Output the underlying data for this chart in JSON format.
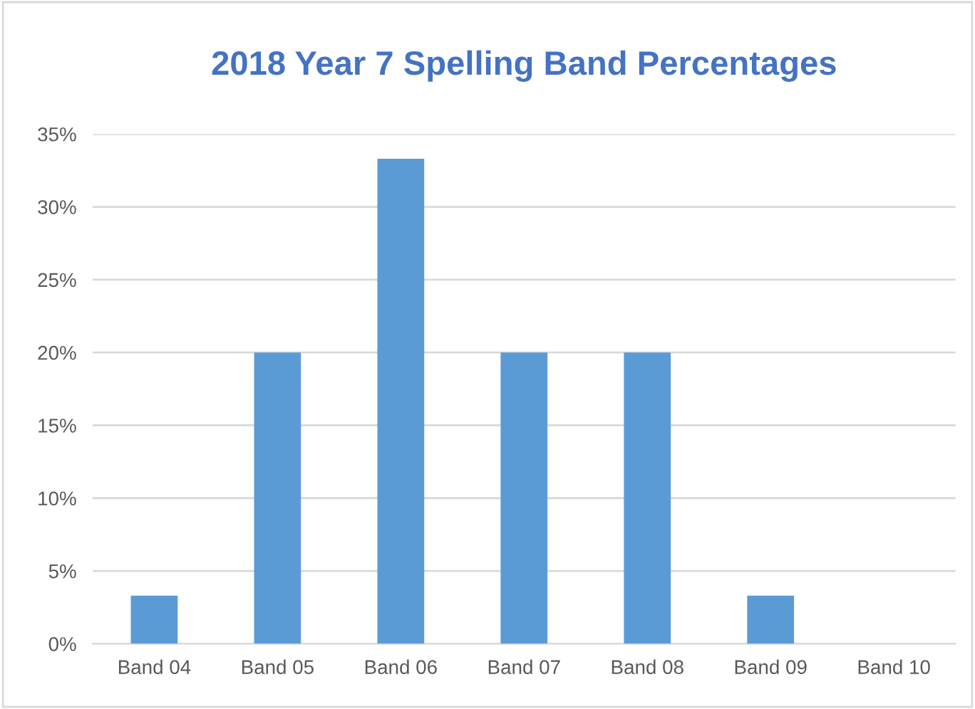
{
  "chart_data": {
    "type": "bar",
    "title": "2018 Year 7 Spelling Band Percentages",
    "categories": [
      "Band 04",
      "Band 05",
      "Band 06",
      "Band 07",
      "Band 08",
      "Band 09",
      "Band 10"
    ],
    "values": [
      3.3,
      20,
      33.3,
      20,
      20,
      3.3,
      0
    ],
    "color": "#5b9bd5",
    "ylim": [
      0,
      35
    ],
    "yticks": [
      {
        "value": 0,
        "label": "0%"
      },
      {
        "value": 5,
        "label": "5%"
      },
      {
        "value": 10,
        "label": "10%"
      },
      {
        "value": 15,
        "label": "15%"
      },
      {
        "value": 20,
        "label": "20%"
      },
      {
        "value": 25,
        "label": "25%"
      },
      {
        "value": 30,
        "label": "30%"
      },
      {
        "value": 35,
        "label": "35%"
      }
    ],
    "grid": "y",
    "legend": false
  }
}
